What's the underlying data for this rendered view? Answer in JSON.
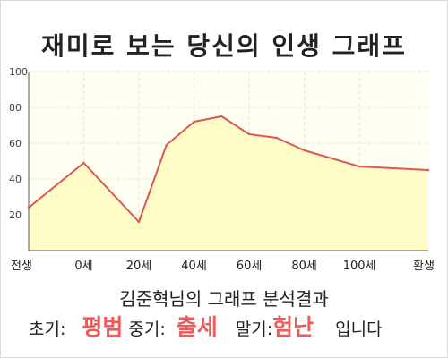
{
  "title": "재미로 보는 당신의 인생 그래프",
  "chart_data": {
    "type": "area",
    "x_labels": [
      "전생",
      "0세",
      "20세",
      "40세",
      "60세",
      "80세",
      "100세",
      "환생"
    ],
    "y_ticks": [
      20,
      40,
      60,
      80,
      100
    ],
    "ylim": [
      0,
      100
    ],
    "grid": true,
    "points": [
      {
        "x": "전생",
        "y": 24
      },
      {
        "x": "0세",
        "y": 49
      },
      {
        "x": "20세",
        "y": 16
      },
      {
        "x": "30세",
        "y": 59
      },
      {
        "x": "40세",
        "y": 72
      },
      {
        "x": "50세",
        "y": 75
      },
      {
        "x": "60세",
        "y": 65
      },
      {
        "x": "70세",
        "y": 63
      },
      {
        "x": "80세",
        "y": 56
      },
      {
        "x": "100세",
        "y": 47
      },
      {
        "x": "환생",
        "y": 45
      }
    ],
    "colors": {
      "line": "#dd5555",
      "fill": "#fffcc8",
      "grid": "#e6e6c8"
    }
  },
  "result": {
    "heading": "김준혁님의 그래프 분석결과",
    "early_label": "초기:",
    "early_value": "평범",
    "middle_label": "중기:",
    "middle_value": "출세",
    "late_label": "말기:",
    "late_value": "험난",
    "suffix": "입니다"
  }
}
